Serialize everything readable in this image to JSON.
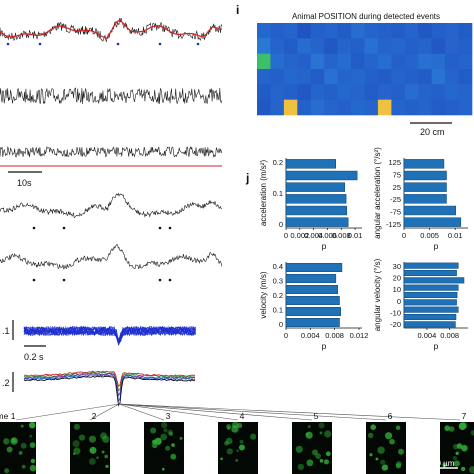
{
  "figure": {
    "panel_i_letter": "i",
    "panel_j_letter": "j",
    "heatmap_title": "Animal POSITION during detected events",
    "heatmap_scalebar": "20 cm",
    "trace_scalebar": "10s",
    "avg_scale_label": ".1",
    "avg_time_label": "0.2 s",
    "bottom_scale_label": ".2",
    "frames": [
      "me 1",
      "2",
      "3",
      "4",
      "5",
      "6",
      "7"
    ],
    "frame_scalebar": "50 µm",
    "colors": {
      "trace": "#1a1a1a",
      "fit": "#d62020",
      "bar": "#1f72b8",
      "avg": "#1f2fd0",
      "cell": "#2fae35"
    }
  },
  "chart_data": [
    {
      "type": "bar",
      "orientation": "horizontal",
      "ylabel": "acceleration (m/s²)",
      "xlabel": "p",
      "yticks": [
        "0.2",
        "0.1",
        "0"
      ],
      "xticks": [
        "0",
        "0.002",
        "0.004",
        "0.006",
        "0.008",
        "0.01"
      ],
      "xlim": [
        0,
        0.011
      ],
      "values": [
        0.0072,
        0.0103,
        0.0085,
        0.0087,
        0.0088,
        0.009
      ]
    },
    {
      "type": "bar",
      "orientation": "horizontal",
      "ylabel": "angular acceleration (°/s²)",
      "xlabel": "p",
      "yticks": [
        "125",
        "75",
        "25",
        "-25",
        "-75",
        "-125"
      ],
      "xticks": [
        "0",
        "0.005",
        "0.01"
      ],
      "xlim": [
        0,
        0.0125
      ],
      "values": [
        0.0078,
        0.0083,
        0.0083,
        0.0083,
        0.0101,
        0.0111
      ]
    },
    {
      "type": "bar",
      "orientation": "horizontal",
      "ylabel": "velocity (m/s)",
      "xlabel": "p",
      "yticks": [
        "0.4",
        "0.3",
        "0.2",
        "0.1",
        "0"
      ],
      "xticks": [
        "0",
        "0.004",
        "0.008",
        "0.012"
      ],
      "xlim": [
        0,
        0.0125
      ],
      "values": [
        0.0092,
        0.0082,
        0.0085,
        0.0088,
        0.009,
        0.0088
      ]
    },
    {
      "type": "bar",
      "orientation": "horizontal",
      "ylabel": "angular velocity (°/s)",
      "xlabel": "p",
      "yticks": [
        "30",
        "20",
        "10",
        "0",
        "-10",
        "-20"
      ],
      "xticks": [
        "0.004",
        "0.008"
      ],
      "xlim": [
        0,
        0.0112
      ],
      "values": [
        0.0095,
        0.0092,
        0.0105,
        0.0095,
        0.0093,
        0.0092,
        0.0095,
        0.0091,
        0.009
      ]
    },
    {
      "type": "heatmap",
      "title": "Animal POSITION during detected events",
      "rows": 6,
      "cols": 16,
      "values": [
        [
          0.32,
          0.28,
          0.3,
          0.22,
          0.28,
          0.3,
          0.26,
          0.34,
          0.3,
          0.28,
          0.26,
          0.3,
          0.24,
          0.28,
          0.3,
          0.26
        ],
        [
          0.4,
          0.3,
          0.26,
          0.34,
          0.3,
          0.24,
          0.3,
          0.28,
          0.36,
          0.3,
          0.32,
          0.28,
          0.3,
          0.24,
          0.3,
          0.28
        ],
        [
          0.62,
          0.34,
          0.3,
          0.28,
          0.38,
          0.3,
          0.34,
          0.26,
          0.3,
          0.34,
          0.28,
          0.3,
          0.36,
          0.34,
          0.28,
          0.3
        ],
        [
          0.3,
          0.28,
          0.32,
          0.3,
          0.26,
          0.36,
          0.3,
          0.32,
          0.28,
          0.26,
          0.3,
          0.28,
          0.26,
          0.38,
          0.3,
          0.26
        ],
        [
          0.26,
          0.3,
          0.28,
          0.24,
          0.3,
          0.28,
          0.32,
          0.3,
          0.26,
          0.3,
          0.28,
          0.34,
          0.3,
          0.28,
          0.32,
          0.3
        ],
        [
          0.24,
          0.3,
          0.8,
          0.28,
          0.34,
          0.3,
          0.28,
          0.32,
          0.3,
          0.86,
          0.3,
          0.28,
          0.3,
          0.26,
          0.28,
          0.3
        ]
      ]
    }
  ]
}
